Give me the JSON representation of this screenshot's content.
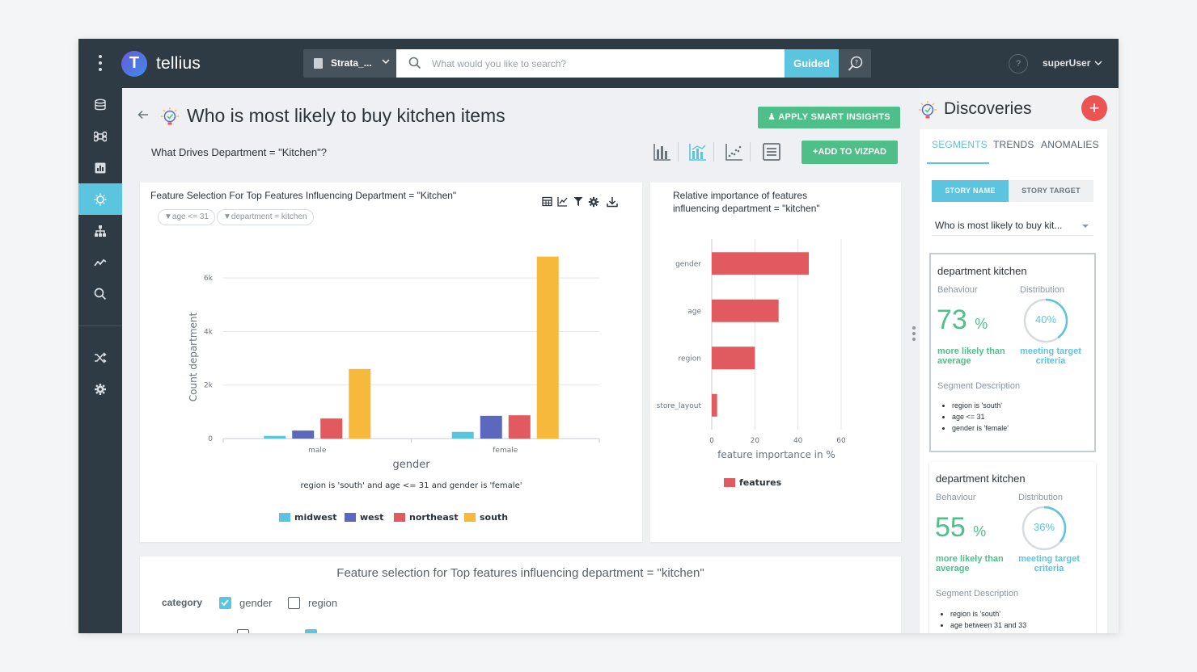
{
  "header": {
    "brand": "tellius",
    "logo_letter": "T",
    "datasource": "Strata_...",
    "search_placeholder": "What would you like to search?",
    "guided_label": "Guided",
    "help_label": "?",
    "user": "superUser"
  },
  "nav": {
    "icons": [
      "database-icon",
      "command-icon",
      "chart-icon",
      "insights-bulb-icon",
      "hierarchy-icon",
      "trend-icon",
      "search-icon",
      "shuffle-icon",
      "settings-gear-icon"
    ],
    "active": "insights-bulb-icon"
  },
  "main": {
    "title": "Who is most likely to buy kitchen items",
    "apply_smart_insights": "APPLY SMART INSIGHTS",
    "subtitle": "What Drives Department = \"Kitchen\"?",
    "add_to_vizpad": "+ADD TO VIZPAD"
  },
  "chart1": {
    "title": "Feature Selection For Top Features Influencing Department = \"Kitchen\"",
    "filters": [
      "age <= 31",
      "department = kitchen"
    ],
    "caption": "region is 'south' and age <= 31 and gender is 'female'"
  },
  "chart2": {
    "title": "Relative importance of features influencing department = \"kitchen\""
  },
  "card3": {
    "title": "Feature selection for Top features influencing department = \"kitchen\"",
    "category_label": "category",
    "options": [
      {
        "label": "gender",
        "checked": true
      },
      {
        "label": "region",
        "checked": false
      }
    ]
  },
  "discoveries": {
    "title": "Discoveries",
    "add_label": "+",
    "tabs": [
      "SEGMENTS",
      "TRENDS",
      "ANOMALIES"
    ],
    "active_tab": "SEGMENTS",
    "toggle": [
      "STORY NAME",
      "STORY TARGET"
    ],
    "story_value": "Who is most likely to buy kit...",
    "cards": [
      {
        "title": "department kitchen",
        "behaviour_label": "Behaviour",
        "distribution_label": "Distribution",
        "behaviour_value": "73",
        "behaviour_unit": "%",
        "distribution_value": "40%",
        "distribution_fraction": 0.4,
        "more_likely": "more likely than average",
        "meeting_target": "meeting target criteria",
        "desc_label": "Segment Description",
        "desc": [
          "region is 'south'",
          "age <= 31",
          "gender is 'female'"
        ]
      },
      {
        "title": "department kitchen",
        "behaviour_label": "Behaviour",
        "distribution_label": "Distribution",
        "behaviour_value": "55",
        "behaviour_unit": "%",
        "distribution_value": "36%",
        "distribution_fraction": 0.36,
        "more_likely": "more likely than average",
        "meeting_target": "meeting target criteria",
        "desc_label": "Segment Description",
        "desc": [
          "region is 'south'",
          "age between 31 and 33"
        ]
      }
    ]
  },
  "colors": {
    "midwest": "#5bc4df",
    "west": "#5b68be",
    "northeast": "#e05a5f",
    "south": "#f6b93b",
    "features": "#e05a5f",
    "accent": "#5bc4df",
    "green": "#4fbf8a"
  },
  "chart_data": [
    {
      "type": "bar",
      "categories": [
        "male",
        "female"
      ],
      "series": [
        {
          "name": "midwest",
          "values": [
            100,
            250
          ]
        },
        {
          "name": "west",
          "values": [
            300,
            850
          ]
        },
        {
          "name": "northeast",
          "values": [
            750,
            870
          ]
        },
        {
          "name": "south",
          "values": [
            2600,
            6800
          ]
        }
      ],
      "xlabel": "gender",
      "ylabel": "Count department",
      "yticks": [
        0,
        2000,
        4000,
        6000
      ],
      "ytick_labels": [
        "0",
        "2k",
        "4k",
        "6k"
      ],
      "ylim": [
        0,
        7000
      ],
      "grid": true,
      "legend": "bottom"
    },
    {
      "type": "bar",
      "orientation": "horizontal",
      "categories": [
        "gender",
        "age",
        "region",
        "store_layout"
      ],
      "series": [
        {
          "name": "features",
          "values": [
            45,
            31,
            20,
            2.5
          ]
        }
      ],
      "xlabel": "feature importance in %",
      "xticks": [
        0,
        20,
        40,
        60
      ],
      "xlim": [
        0,
        60
      ],
      "grid": true,
      "legend": "bottom"
    }
  ]
}
